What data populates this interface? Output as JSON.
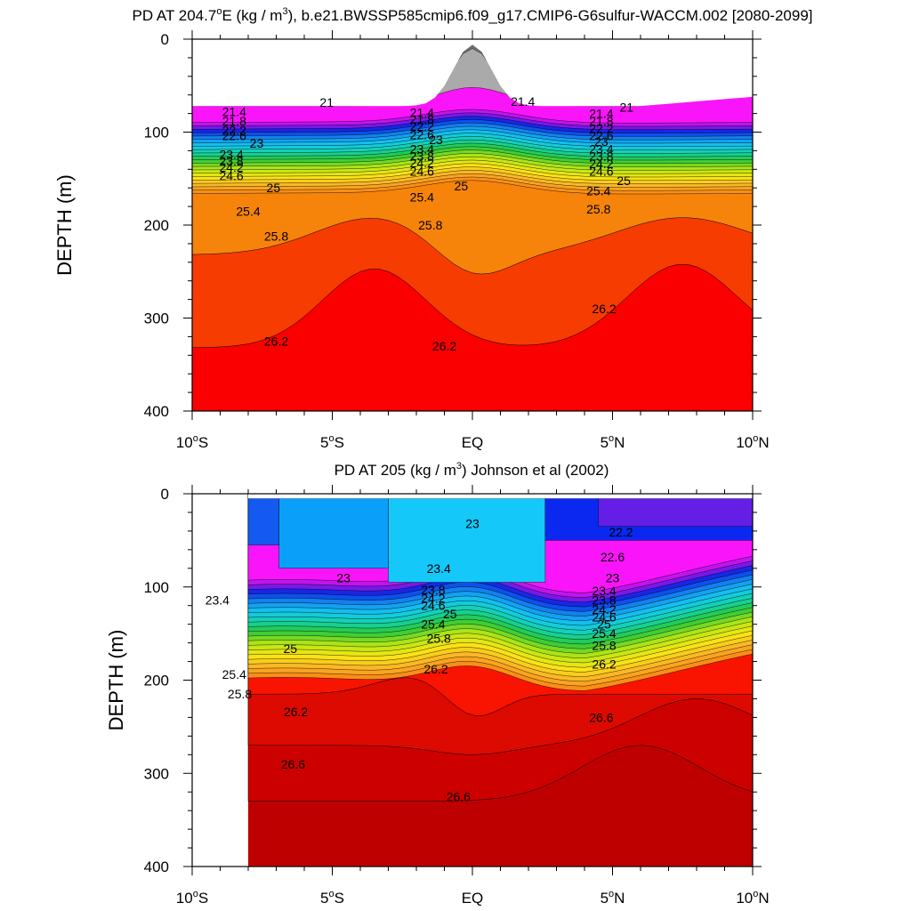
{
  "chart_data": [
    {
      "type": "contour",
      "title": "PD AT 204.7°E (kg / m³), b.e21.BWSSP585cmip6.f09_g17.CMIP6-G6sulfur-WACCM.002 [2080-2099]",
      "title_parts": {
        "pre": "PD AT 204.7",
        "deg": "o",
        "mid": "E (kg / m",
        "sup": "3",
        "post": "), b.e21.BWSSP585cmip6.f09_g17.CMIP6-G6sulfur-WACCM.002 [2080-2099]"
      },
      "xlabel": "",
      "ylabel": "DEPTH (m)",
      "xlim": [
        -10,
        10
      ],
      "ylim": [
        0,
        400
      ],
      "y_inverted": true,
      "x_ticks": [
        {
          "value": -10,
          "num": "10",
          "deg": "o",
          "hem": "S"
        },
        {
          "value": -5,
          "num": "5",
          "deg": "o",
          "hem": "S"
        },
        {
          "value": 0,
          "num": "EQ",
          "deg": "",
          "hem": ""
        },
        {
          "value": 5,
          "num": "5",
          "deg": "o",
          "hem": "N"
        },
        {
          "value": 10,
          "num": "10",
          "deg": "o",
          "hem": "N"
        }
      ],
      "y_ticks": [
        "0",
        "100",
        "200",
        "300",
        "400"
      ],
      "y_tick_values": [
        0,
        100,
        200,
        300,
        400
      ],
      "data_extent_lat": [
        -10,
        10
      ],
      "contour_labels": [
        {
          "lat": -5.2,
          "depth": 68,
          "text": "21"
        },
        {
          "lat": 1.8,
          "depth": 67,
          "text": "21.4"
        },
        {
          "lat": 5.5,
          "depth": 73,
          "text": "21"
        },
        {
          "lat": -8.5,
          "depth": 78,
          "text": "21.4"
        },
        {
          "lat": -8.5,
          "depth": 88,
          "text": "21.8"
        },
        {
          "lat": -8.5,
          "depth": 98,
          "text": "22.2"
        },
        {
          "lat": -8.5,
          "depth": 104,
          "text": "22.6"
        },
        {
          "lat": -7.7,
          "depth": 112,
          "text": "23"
        },
        {
          "lat": -8.6,
          "depth": 124,
          "text": "23.4"
        },
        {
          "lat": -8.6,
          "depth": 131,
          "text": "23.8"
        },
        {
          "lat": -8.6,
          "depth": 138,
          "text": "24.2"
        },
        {
          "lat": -8.6,
          "depth": 147,
          "text": "24.6"
        },
        {
          "lat": -7.1,
          "depth": 160,
          "text": "25"
        },
        {
          "lat": -8.0,
          "depth": 185,
          "text": "25.4"
        },
        {
          "lat": -7.0,
          "depth": 212,
          "text": "25.8"
        },
        {
          "lat": -1.8,
          "depth": 79,
          "text": "21.4"
        },
        {
          "lat": -1.8,
          "depth": 86,
          "text": "21.8"
        },
        {
          "lat": -1.8,
          "depth": 94,
          "text": "22.2"
        },
        {
          "lat": -1.8,
          "depth": 103,
          "text": "22.6"
        },
        {
          "lat": -1.3,
          "depth": 108,
          "text": "23"
        },
        {
          "lat": -1.8,
          "depth": 118,
          "text": "23.4"
        },
        {
          "lat": -1.8,
          "depth": 126,
          "text": "23.8"
        },
        {
          "lat": -1.8,
          "depth": 133,
          "text": "24.2"
        },
        {
          "lat": -1.8,
          "depth": 142,
          "text": "24.6"
        },
        {
          "lat": -0.4,
          "depth": 158,
          "text": "25"
        },
        {
          "lat": -1.8,
          "depth": 170,
          "text": "25.4"
        },
        {
          "lat": -1.5,
          "depth": 200,
          "text": "25.8"
        },
        {
          "lat": 4.6,
          "depth": 80,
          "text": "21.4"
        },
        {
          "lat": 4.6,
          "depth": 88,
          "text": "21.8"
        },
        {
          "lat": 4.6,
          "depth": 96,
          "text": "22.2"
        },
        {
          "lat": 4.6,
          "depth": 104,
          "text": "22.6"
        },
        {
          "lat": 4.6,
          "depth": 110,
          "text": "23"
        },
        {
          "lat": 4.6,
          "depth": 118,
          "text": "23.4"
        },
        {
          "lat": 4.6,
          "depth": 126,
          "text": "23.8"
        },
        {
          "lat": 4.6,
          "depth": 134,
          "text": "24.2"
        },
        {
          "lat": 4.6,
          "depth": 142,
          "text": "24.6"
        },
        {
          "lat": 5.4,
          "depth": 152,
          "text": "25"
        },
        {
          "lat": 4.5,
          "depth": 163,
          "text": "25.4"
        },
        {
          "lat": 4.5,
          "depth": 183,
          "text": "25.8"
        },
        {
          "lat": -7.0,
          "depth": 325,
          "text": "26.2"
        },
        {
          "lat": -1.0,
          "depth": 330,
          "text": "26.2"
        },
        {
          "lat": 4.7,
          "depth": 290,
          "text": "26.2"
        }
      ]
    },
    {
      "type": "contour",
      "title": "PD AT 205 (kg / m³) Johnson et al (2002)",
      "title_parts": {
        "pre": "PD AT 205 (kg / m",
        "deg": "",
        "mid": "",
        "sup": "3",
        "post": ") Johnson et al (2002)"
      },
      "xlabel": "",
      "ylabel": "DEPTH (m)",
      "xlim": [
        -10,
        10
      ],
      "ylim": [
        0,
        400
      ],
      "y_inverted": true,
      "x_ticks": [
        {
          "value": -10,
          "num": "10",
          "deg": "o",
          "hem": "S"
        },
        {
          "value": -5,
          "num": "5",
          "deg": "o",
          "hem": "S"
        },
        {
          "value": 0,
          "num": "EQ",
          "deg": "",
          "hem": ""
        },
        {
          "value": 5,
          "num": "5",
          "deg": "o",
          "hem": "N"
        },
        {
          "value": 10,
          "num": "10",
          "deg": "o",
          "hem": "N"
        }
      ],
      "y_ticks": [
        "0",
        "100",
        "200",
        "300",
        "400"
      ],
      "y_tick_values": [
        0,
        100,
        200,
        300,
        400
      ],
      "data_extent_lat": [
        -8,
        10
      ],
      "contour_labels": [
        {
          "lat": 0.0,
          "depth": 32,
          "text": "23"
        },
        {
          "lat": 5.3,
          "depth": 41,
          "text": "22.2"
        },
        {
          "lat": 5.0,
          "depth": 68,
          "text": "22.6"
        },
        {
          "lat": -4.6,
          "depth": 90,
          "text": "23"
        },
        {
          "lat": -1.2,
          "depth": 80,
          "text": "23.4"
        },
        {
          "lat": 5.0,
          "depth": 90,
          "text": "23"
        },
        {
          "lat": -9.1,
          "depth": 114,
          "text": "23.4"
        },
        {
          "lat": -1.4,
          "depth": 103,
          "text": "23.8"
        },
        {
          "lat": -1.4,
          "depth": 112,
          "text": "24.2"
        },
        {
          "lat": -1.4,
          "depth": 120,
          "text": "24.6"
        },
        {
          "lat": -0.8,
          "depth": 129,
          "text": "25"
        },
        {
          "lat": -1.4,
          "depth": 140,
          "text": "25.4"
        },
        {
          "lat": -1.2,
          "depth": 155,
          "text": "25.8"
        },
        {
          "lat": 4.7,
          "depth": 104,
          "text": "23.4"
        },
        {
          "lat": 4.7,
          "depth": 114,
          "text": "23.8"
        },
        {
          "lat": 4.7,
          "depth": 124,
          "text": "24.2"
        },
        {
          "lat": 4.7,
          "depth": 132,
          "text": "24.6"
        },
        {
          "lat": 4.7,
          "depth": 140,
          "text": "25"
        },
        {
          "lat": 4.7,
          "depth": 150,
          "text": "25.4"
        },
        {
          "lat": 4.7,
          "depth": 163,
          "text": "25.8"
        },
        {
          "lat": 4.7,
          "depth": 183,
          "text": "26.2"
        },
        {
          "lat": -6.5,
          "depth": 166,
          "text": "25"
        },
        {
          "lat": -8.5,
          "depth": 194,
          "text": "25.4"
        },
        {
          "lat": -8.3,
          "depth": 215,
          "text": "25.8"
        },
        {
          "lat": -6.3,
          "depth": 234,
          "text": "26.2"
        },
        {
          "lat": -1.3,
          "depth": 188,
          "text": "26.2"
        },
        {
          "lat": -6.4,
          "depth": 290,
          "text": "26.6"
        },
        {
          "lat": -0.5,
          "depth": 325,
          "text": "26.6"
        },
        {
          "lat": 4.6,
          "depth": 240,
          "text": "26.6"
        }
      ]
    }
  ]
}
